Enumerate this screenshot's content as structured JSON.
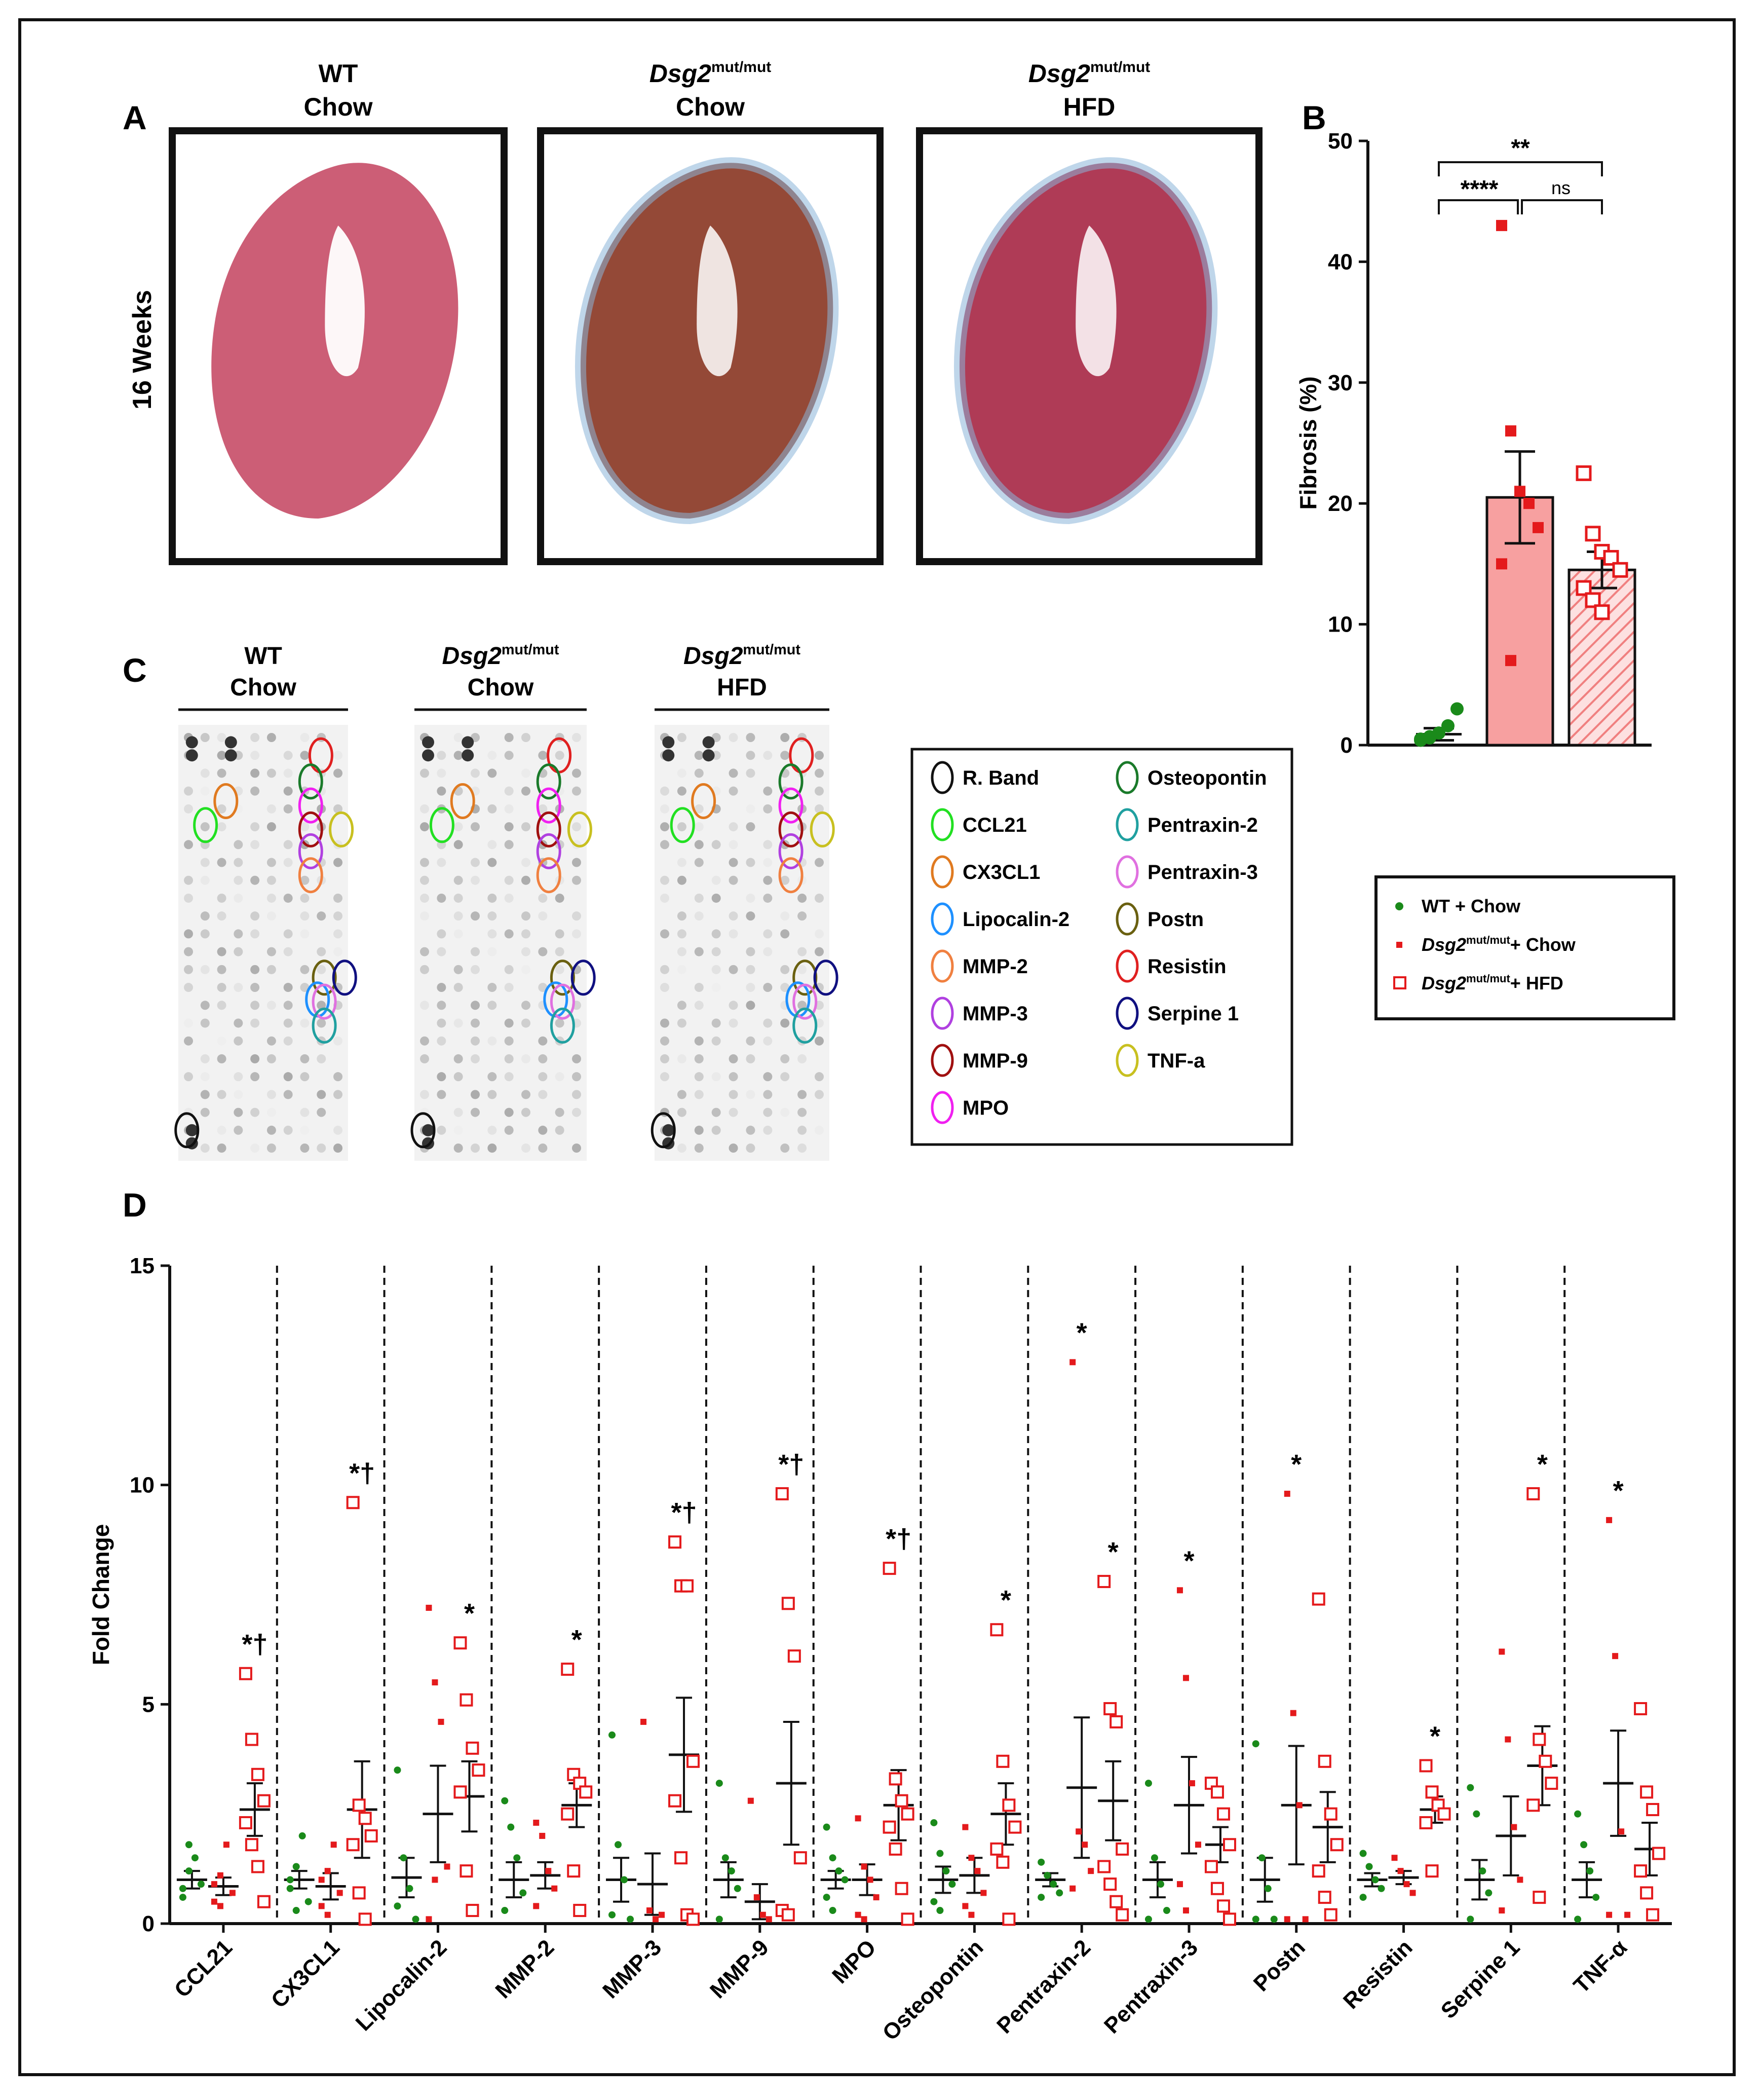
{
  "panel_letters": {
    "a": "A",
    "b": "B",
    "c": "C",
    "d": "D"
  },
  "panel_a": {
    "row_label": "16 Weeks",
    "columns": [
      {
        "line1": "WT",
        "sup": "",
        "line2": "Chow"
      },
      {
        "line1": "Dsg2",
        "sup": "mut/mut",
        "line2": "Chow"
      },
      {
        "line1": "Dsg2",
        "sup": "mut/mut",
        "line2": "HFD"
      }
    ],
    "tissue_colors": [
      "#c8506a",
      "#8b3a26",
      "#a82a48"
    ]
  },
  "panel_c": {
    "columns": [
      {
        "line1": "WT",
        "sup": "",
        "line2": "Chow"
      },
      {
        "line1": "Dsg2",
        "sup": "mut/mut",
        "line2": "Chow"
      },
      {
        "line1": "Dsg2",
        "sup": "mut/mut",
        "line2": "HFD"
      }
    ],
    "legend_left": [
      {
        "label": "R. Band",
        "color": "#111111"
      },
      {
        "label": "CCL21",
        "color": "#22e022"
      },
      {
        "label": "CX3CL1",
        "color": "#e07a20"
      },
      {
        "label": "Lipocalin-2",
        "color": "#1e90ff"
      },
      {
        "label": "MMP-2",
        "color": "#f08040"
      },
      {
        "label": "MMP-3",
        "color": "#b040e0"
      },
      {
        "label": "MMP-9",
        "color": "#a01010"
      },
      {
        "label": "MPO",
        "color": "#f020f0"
      }
    ],
    "legend_right": [
      {
        "label": "Osteopontin",
        "color": "#1a7a2a"
      },
      {
        "label": "Pentraxin-2",
        "color": "#20a0a0"
      },
      {
        "label": "Pentraxin-3",
        "color": "#e070e0"
      },
      {
        "label": "Postn",
        "color": "#6a6010"
      },
      {
        "label": "Resistin",
        "color": "#e02020"
      },
      {
        "label": "Serpine 1",
        "color": "#101080"
      },
      {
        "label": "TNF-a",
        "color": "#c8c020"
      }
    ]
  },
  "legend_groups": [
    {
      "text": "WT + Chow",
      "sup": "",
      "tail": "",
      "color": "#1a8a1a",
      "marker": "dot"
    },
    {
      "text": "Dsg2",
      "sup": "mut/mut",
      "tail": "+ Chow",
      "color": "#e41a1c",
      "marker": "filled-square"
    },
    {
      "text": "Dsg2",
      "sup": "mut/mut",
      "tail": "+ HFD",
      "color": "#e41a1c",
      "marker": "open-square"
    }
  ],
  "chart_data": [
    {
      "panel": "B",
      "type": "bar",
      "ylabel": "Fibrosis (%)",
      "ylim": [
        0,
        50
      ],
      "yticks": [
        0,
        10,
        20,
        30,
        40,
        50
      ],
      "series": [
        {
          "mean": 0.9,
          "sem": 0.5,
          "points": [
            0.4,
            0.6,
            1.0,
            1.6,
            3.0,
            0.5,
            0.7
          ]
        },
        {
          "mean": 20.5,
          "sem": 3.8,
          "points": [
            43,
            26,
            21,
            20,
            18,
            15,
            7
          ]
        },
        {
          "mean": 14.5,
          "sem": 1.5,
          "points": [
            22.5,
            17.5,
            16,
            15.5,
            14.5,
            13,
            12,
            11
          ]
        }
      ],
      "significance": [
        {
          "label": "**",
          "from": 0,
          "to": 2
        },
        {
          "label": "****",
          "from": 0,
          "to": 1
        },
        {
          "label": "ns",
          "from": 1,
          "to": 2
        }
      ]
    },
    {
      "panel": "D",
      "type": "scatter",
      "ylabel": "Fold Change",
      "ylim": [
        0,
        15
      ],
      "yticks": [
        0,
        5,
        10,
        15
      ],
      "categories": [
        {
          "name": "CCL21",
          "groups": [
            {
              "mean": 1.0,
              "sem": 0.2,
              "points": [
                0.8,
                1.2,
                1.5,
                0.9,
                0.6,
                1.8
              ]
            },
            {
              "mean": 0.85,
              "sem": 0.2,
              "points": [
                0.5,
                1.1,
                1.8,
                0.7,
                0.9,
                0.4
              ]
            },
            {
              "mean": 2.6,
              "sem": 0.6,
              "points": [
                5.7,
                4.2,
                3.4,
                2.8,
                2.3,
                1.8,
                1.3,
                0.5
              ]
            }
          ],
          "stars": [
            "",
            "",
            "*†"
          ]
        },
        {
          "name": "CX3CL1",
          "groups": [
            {
              "mean": 1.0,
              "sem": 0.2,
              "points": [
                0.8,
                1.3,
                2.0,
                0.5,
                1.0,
                0.3
              ]
            },
            {
              "mean": 0.85,
              "sem": 0.3,
              "points": [
                0.4,
                1.2,
                1.8,
                0.7,
                1.0,
                0.2
              ]
            },
            {
              "mean": 2.6,
              "sem": 1.1,
              "points": [
                9.6,
                2.7,
                2.4,
                2.0,
                1.8,
                0.7,
                0.1
              ]
            }
          ],
          "stars": [
            "",
            "",
            "*†"
          ]
        },
        {
          "name": "Lipocalin-2",
          "groups": [
            {
              "mean": 1.05,
              "sem": 0.45,
              "points": [
                3.5,
                1.5,
                0.8,
                0.1,
                0.4
              ]
            },
            {
              "mean": 2.5,
              "sem": 1.1,
              "points": [
                7.2,
                5.5,
                4.6,
                1.3,
                0.1,
                1.0
              ]
            },
            {
              "mean": 2.9,
              "sem": 0.8,
              "points": [
                6.4,
                5.1,
                4.0,
                3.5,
                3.0,
                1.2,
                0.3
              ]
            }
          ],
          "stars": [
            "",
            "",
            "*"
          ]
        },
        {
          "name": "MMP-2",
          "groups": [
            {
              "mean": 1.0,
              "sem": 0.4,
              "points": [
                2.8,
                2.2,
                1.5,
                0.7,
                0.3
              ]
            },
            {
              "mean": 1.1,
              "sem": 0.3,
              "points": [
                2.3,
                2.0,
                1.2,
                0.8,
                0.4
              ]
            },
            {
              "mean": 2.7,
              "sem": 0.5,
              "points": [
                5.8,
                3.4,
                3.2,
                3.0,
                2.5,
                1.2,
                0.3
              ]
            }
          ],
          "stars": [
            "",
            "",
            "*"
          ]
        },
        {
          "name": "MMP-3",
          "groups": [
            {
              "mean": 1.0,
              "sem": 0.5,
              "points": [
                4.3,
                1.8,
                1.0,
                0.1,
                0.2
              ]
            },
            {
              "mean": 0.9,
              "sem": 0.7,
              "points": [
                4.6,
                0.3,
                0.1,
                0.2
              ]
            },
            {
              "mean": 3.85,
              "sem": 1.3,
              "points": [
                8.7,
                7.7,
                7.7,
                3.7,
                2.8,
                1.5,
                0.2,
                0.1
              ]
            }
          ],
          "stars": [
            "",
            "",
            "*†"
          ]
        },
        {
          "name": "MMP-9",
          "groups": [
            {
              "mean": 1.0,
              "sem": 0.4,
              "points": [
                3.2,
                1.5,
                1.2,
                0.8,
                0.1
              ]
            },
            {
              "mean": 0.5,
              "sem": 0.4,
              "points": [
                2.8,
                0.6,
                0.2,
                0.1
              ]
            },
            {
              "mean": 3.2,
              "sem": 1.4,
              "points": [
                9.8,
                7.3,
                6.1,
                1.5,
                0.3,
                0.2
              ]
            }
          ],
          "stars": [
            "",
            "",
            "*†"
          ]
        },
        {
          "name": "MPO",
          "groups": [
            {
              "mean": 1.0,
              "sem": 0.2,
              "points": [
                2.2,
                1.5,
                1.2,
                1.0,
                0.6,
                0.3
              ]
            },
            {
              "mean": 1.0,
              "sem": 0.35,
              "points": [
                2.4,
                1.3,
                1.0,
                0.6,
                0.2,
                0.1
              ]
            },
            {
              "mean": 2.7,
              "sem": 0.8,
              "points": [
                8.1,
                3.3,
                2.8,
                2.5,
                2.2,
                1.7,
                0.8,
                0.1
              ]
            }
          ],
          "stars": [
            "",
            "",
            "*†"
          ]
        },
        {
          "name": "Osteopontin",
          "groups": [
            {
              "mean": 1.0,
              "sem": 0.3,
              "points": [
                2.3,
                1.6,
                1.2,
                0.9,
                0.5,
                0.3
              ]
            },
            {
              "mean": 1.1,
              "sem": 0.4,
              "points": [
                2.2,
                1.5,
                1.2,
                0.7,
                0.4,
                0.2
              ]
            },
            {
              "mean": 2.5,
              "sem": 0.7,
              "points": [
                6.7,
                3.7,
                2.7,
                2.2,
                1.7,
                1.4,
                0.1
              ]
            }
          ],
          "stars": [
            "",
            "",
            "*"
          ]
        },
        {
          "name": "Pentraxin-2",
          "groups": [
            {
              "mean": 1.0,
              "sem": 0.15,
              "points": [
                1.4,
                1.1,
                0.9,
                0.7,
                0.6
              ]
            },
            {
              "mean": 3.1,
              "sem": 1.6,
              "points": [
                12.8,
                2.1,
                1.8,
                1.2,
                0.8
              ]
            },
            {
              "mean": 2.8,
              "sem": 0.9,
              "points": [
                7.8,
                4.9,
                4.6,
                1.7,
                1.3,
                0.9,
                0.5,
                0.2
              ]
            }
          ],
          "stars": [
            "",
            "*",
            "*"
          ]
        },
        {
          "name": "Pentraxin-3",
          "groups": [
            {
              "mean": 1.0,
              "sem": 0.4,
              "points": [
                3.2,
                1.5,
                0.9,
                0.3,
                0.1
              ]
            },
            {
              "mean": 2.7,
              "sem": 1.1,
              "points": [
                7.6,
                5.6,
                3.2,
                1.8,
                0.9,
                0.3
              ]
            },
            {
              "mean": 1.8,
              "sem": 0.4,
              "points": [
                3.2,
                3.0,
                2.5,
                1.8,
                1.3,
                0.8,
                0.4,
                0.1
              ]
            }
          ],
          "stars": [
            "",
            "*",
            ""
          ]
        },
        {
          "name": "Postn",
          "groups": [
            {
              "mean": 1.0,
              "sem": 0.5,
              "points": [
                4.1,
                1.5,
                0.8,
                0.1,
                0.1
              ]
            },
            {
              "mean": 2.7,
              "sem": 1.35,
              "points": [
                9.8,
                4.8,
                2.7,
                0.1,
                0.1
              ]
            },
            {
              "mean": 2.2,
              "sem": 0.8,
              "points": [
                7.4,
                3.7,
                2.5,
                1.8,
                1.2,
                0.6,
                0.2
              ]
            }
          ],
          "stars": [
            "",
            "*",
            ""
          ]
        },
        {
          "name": "Resistin",
          "groups": [
            {
              "mean": 1.0,
              "sem": 0.15,
              "points": [
                1.6,
                1.3,
                1.0,
                0.8,
                0.6
              ]
            },
            {
              "mean": 1.05,
              "sem": 0.15,
              "points": [
                1.5,
                1.2,
                0.9,
                0.7
              ]
            },
            {
              "mean": 2.6,
              "sem": 0.3,
              "points": [
                3.6,
                3.0,
                2.7,
                2.5,
                2.3,
                1.2
              ]
            }
          ],
          "stars": [
            "",
            "",
            "*"
          ]
        },
        {
          "name": "Serpine 1",
          "groups": [
            {
              "mean": 1.0,
              "sem": 0.45,
              "points": [
                3.1,
                2.5,
                1.2,
                0.7,
                0.1
              ]
            },
            {
              "mean": 2.0,
              "sem": 0.9,
              "points": [
                6.2,
                4.2,
                2.2,
                1.0,
                0.3
              ]
            },
            {
              "mean": 3.6,
              "sem": 0.9,
              "points": [
                9.8,
                4.2,
                3.7,
                3.2,
                2.7,
                0.6
              ]
            }
          ],
          "stars": [
            "",
            "",
            "*"
          ]
        },
        {
          "name": "TNF-α",
          "groups": [
            {
              "mean": 1.0,
              "sem": 0.4,
              "points": [
                2.5,
                1.8,
                1.2,
                0.6,
                0.1
              ]
            },
            {
              "mean": 3.2,
              "sem": 1.2,
              "points": [
                9.2,
                6.1,
                2.1,
                0.2,
                0.2
              ]
            },
            {
              "mean": 1.7,
              "sem": 0.6,
              "points": [
                4.9,
                3.0,
                2.6,
                1.6,
                1.2,
                0.7,
                0.2
              ]
            }
          ],
          "stars": [
            "",
            "*",
            ""
          ]
        }
      ]
    }
  ]
}
